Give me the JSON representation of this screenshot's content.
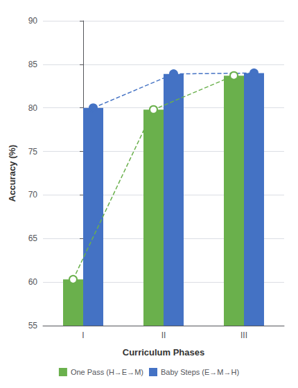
{
  "chart_data": {
    "type": "bar",
    "categories": [
      "I",
      "II",
      "III"
    ],
    "series": [
      {
        "name": "One Pass (H→E→M)",
        "color": "#6ab04c",
        "values": [
          60.3,
          79.8,
          83.7
        ],
        "marker": "hollow_circle",
        "line_style": "dashed"
      },
      {
        "name": "Baby Steps (E→M→H)",
        "color": "#4472c4",
        "values": [
          80.0,
          83.9,
          84.0
        ],
        "marker": "circle",
        "line_style": "dashed"
      }
    ],
    "xlabel": "Curriculum Phases",
    "ylabel": "Accuracy (%)",
    "ylim": [
      55,
      90
    ],
    "yticks": [
      55,
      60,
      65,
      70,
      75,
      80,
      85,
      90
    ],
    "grid": true,
    "legend": "bottom"
  }
}
